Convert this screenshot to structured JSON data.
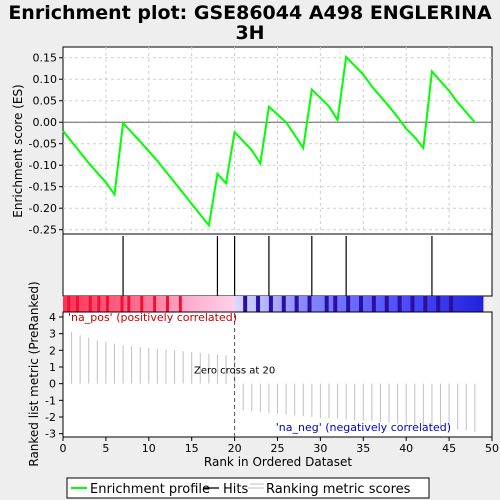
{
  "chart_data": [
    {
      "type": "line",
      "panel": "enrichment",
      "title": "Enrichment plot: GSE86044 A498 ENGLERINA 3H",
      "ylabel": "Enrichment score (ES)",
      "xlim": [
        0,
        50
      ],
      "ylim": [
        -0.26,
        0.175
      ],
      "grid": true,
      "yticks": [
        "0.15",
        "0.10",
        "0.05",
        "0.00",
        "-0.05",
        "-0.10",
        "-0.15",
        "-0.20",
        "-0.25"
      ],
      "ytick_values": [
        0.15,
        0.1,
        0.05,
        0.0,
        -0.05,
        -0.1,
        -0.15,
        -0.2,
        -0.25
      ],
      "color": "#00ff00",
      "x": [
        0,
        3,
        5,
        6,
        7,
        9,
        11,
        14,
        17,
        18,
        19,
        20,
        22,
        23,
        24,
        26,
        28,
        29,
        31,
        32,
        33,
        35,
        36,
        38,
        39,
        40,
        41,
        42,
        43,
        45,
        46,
        48
      ],
      "y": [
        -0.02,
        -0.095,
        -0.14,
        -0.168,
        -0.002,
        -0.045,
        -0.09,
        -0.165,
        -0.24,
        -0.12,
        -0.142,
        -0.023,
        -0.065,
        -0.096,
        0.036,
        0.0,
        -0.06,
        0.076,
        0.037,
        0.005,
        0.152,
        0.111,
        0.083,
        0.037,
        0.012,
        -0.015,
        -0.035,
        -0.06,
        0.118,
        0.073,
        0.046,
        0.0
      ]
    },
    {
      "type": "hits",
      "panel": "hits",
      "x": [
        7,
        18,
        20,
        24,
        29,
        33,
        43
      ]
    },
    {
      "type": "bar",
      "panel": "ranking",
      "ylabel": "Ranked list metric (PreRanked)",
      "xlabel": "Rank in Ordered Dataset",
      "xlim": [
        0,
        50
      ],
      "ylim": [
        -3.2,
        4.3
      ],
      "yticks": [
        "4",
        "3",
        "2",
        "1",
        "0",
        "-1",
        "-2",
        "-3"
      ],
      "ytick_values": [
        4,
        3,
        2,
        1,
        0,
        -1,
        -2,
        -3
      ],
      "xticks": [
        "0",
        "5",
        "10",
        "15",
        "20",
        "25",
        "30",
        "35",
        "40",
        "45",
        "50"
      ],
      "xtick_values": [
        0,
        5,
        10,
        15,
        20,
        25,
        30,
        35,
        40,
        45,
        50
      ],
      "color": "#c0c0c0",
      "x": [
        1,
        2,
        3,
        4,
        5,
        6,
        7,
        8,
        9,
        10,
        11,
        12,
        13,
        14,
        15,
        16,
        17,
        18,
        19,
        20,
        21,
        22,
        23,
        24,
        25,
        26,
        27,
        28,
        29,
        30,
        31,
        32,
        33,
        34,
        35,
        36,
        37,
        38,
        39,
        40,
        41,
        42,
        43,
        44,
        45,
        46,
        47,
        48
      ],
      "values": [
        3.1,
        2.9,
        2.75,
        2.6,
        2.5,
        2.4,
        2.3,
        2.25,
        2.2,
        2.15,
        2.1,
        2.05,
        2.0,
        1.95,
        1.9,
        1.85,
        1.8,
        1.75,
        1.7,
        1.62,
        -1.6,
        -1.65,
        -1.7,
        -1.75,
        -1.8,
        -1.85,
        -1.9,
        -1.95,
        -2.0,
        -2.05,
        -2.08,
        -2.1,
        -2.15,
        -2.2,
        -2.22,
        -2.25,
        -2.3,
        -2.35,
        -2.4,
        -2.45,
        -2.5,
        -2.55,
        -2.6,
        -2.65,
        -2.7,
        -2.75,
        -2.8,
        -2.9
      ],
      "annotations": {
        "zero_cross": "Zero cross at 20",
        "zero_cross_x": 20,
        "pos_label": "'na_pos' (positively correlated)",
        "neg_label": "'na_neg' (negatively correlated)",
        "pos_color": "#cc0000",
        "neg_color": "#0000cc"
      }
    }
  ],
  "colorbar": {
    "stops": [
      {
        "x": 0,
        "color": "#ff3355"
      },
      {
        "x": 10,
        "color": "#ff7799"
      },
      {
        "x": 15,
        "color": "#ffb0d0"
      },
      {
        "x": 19.8,
        "color": "#ffd0e8"
      },
      {
        "x": 20.2,
        "color": "#d8d8ff"
      },
      {
        "x": 28,
        "color": "#8888ff"
      },
      {
        "x": 38,
        "color": "#5555ff"
      },
      {
        "x": 49,
        "color": "#2222dd"
      }
    ],
    "xmax": 49,
    "dark_pos_x": [
      0.5,
      1.5,
      3,
      4,
      5,
      6.7,
      7.5,
      9,
      10.5,
      12,
      13.5
    ],
    "dark_neg_x": [
      21,
      22.5,
      24,
      25.5,
      27,
      28.5,
      30.5,
      31.5,
      33,
      34.5,
      36,
      37.5,
      39,
      40.5,
      42,
      43.5,
      45
    ]
  },
  "legend": {
    "items": [
      {
        "label": "Enrichment profile",
        "color": "#00ff00",
        "kind": "thick"
      },
      {
        "label": "Hits",
        "color": "#000000",
        "kind": "thin"
      },
      {
        "label": "Ranking metric scores",
        "color": "#c0c0c0",
        "kind": "thin"
      }
    ]
  }
}
